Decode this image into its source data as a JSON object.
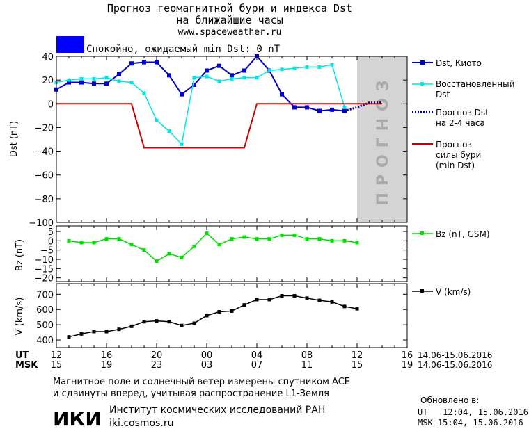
{
  "header": {
    "title_line1": "Прогноз геомагнитной бури и индекса Dst",
    "title_line2": "на ближайшие часы",
    "site": "www.spaceweather.ru",
    "status_color": "#0000ff",
    "status_text": "Спокойно, ожидаемый min Dst: 0 nT"
  },
  "panels": {
    "dst": {
      "ylabel": "Dst (nT)",
      "forecast_watermark": "ПРОГНОЗ"
    },
    "bz": {
      "ylabel": "Bz (nT)"
    },
    "v": {
      "ylabel": "V (km/s)"
    }
  },
  "time_axis": {
    "ut_label": "UT",
    "msk_label": "MSK",
    "ut_ticks": [
      "12",
      "16",
      "20",
      "00",
      "04",
      "08",
      "12",
      "16"
    ],
    "msk_ticks": [
      "15",
      "19",
      "23",
      "03",
      "07",
      "11",
      "15",
      "19"
    ],
    "ut_range": "14.06-15.06.2016",
    "msk_range": "14.06-15.06.2016"
  },
  "legend": {
    "dst_kyoto": "Dst, Киото",
    "dst_restored_1": "Восстановленный",
    "dst_restored_2": "Dst",
    "forecast_1": "Прогноз Dst",
    "forecast_2": "на 2-4 часа",
    "storm_1": "Прогноз",
    "storm_2": "силы бури",
    "storm_3": "(min Dst)",
    "bz": "Bz (nT, GSM)",
    "v": "V (km/s)"
  },
  "footer": {
    "note_line1": "Магнитное поле и солнечный ветер измерены спутником ACE",
    "note_line2": "и сдвинуты вперед, учитывая распространение L1-Земля",
    "institute": "Институт космических исследований РАН",
    "institute_url": "iki.cosmos.ru",
    "logo_text": "ИКИ",
    "updated_label": "Обновлено в:",
    "updated_ut": "UT   12:04, 15.06.2016",
    "updated_msk": "MSK 15:04, 15.06.2016"
  },
  "colors": {
    "dst_kyoto": "#0000cc",
    "dst_restored": "#00e5e5",
    "forecast": "#000099",
    "storm": "#cc0000",
    "bz": "#00dd00",
    "v": "#000000",
    "forecast_band": "#d4d4d4"
  },
  "chart_data": [
    {
      "type": "line",
      "title": "",
      "xlabel": "UT / MSK",
      "ylabel": "Dst (nT)",
      "x_unit": "hours from 12 UT 14.06.2016",
      "xlim": [
        0,
        28
      ],
      "ylim": [
        -100,
        40
      ],
      "yticks": [
        40,
        20,
        0,
        -20,
        -40,
        -60,
        -80,
        -100
      ],
      "forecast_band": [
        24,
        28
      ],
      "series": [
        {
          "name": "Dst, Киото",
          "x": [
            0,
            1,
            2,
            3,
            4,
            5,
            6,
            7,
            8,
            9,
            10,
            11,
            12,
            13,
            14,
            15,
            16,
            17,
            18,
            19,
            20,
            21,
            22,
            23
          ],
          "values": [
            12,
            18,
            18,
            17,
            17,
            25,
            34,
            35,
            35,
            24,
            8,
            16,
            28,
            32,
            24,
            28,
            40,
            28,
            8,
            -3,
            -3,
            -6,
            -5,
            -6
          ]
        },
        {
          "name": "Восстановленный Dst",
          "x": [
            0,
            1,
            2,
            3,
            4,
            5,
            6,
            7,
            8,
            9,
            10,
            11,
            12,
            13,
            14,
            15,
            16,
            17,
            18,
            19,
            20,
            21,
            22,
            23
          ],
          "values": [
            18,
            20,
            21,
            21,
            22,
            19,
            18,
            9,
            -14,
            -23,
            -34,
            22,
            23,
            19,
            21,
            22,
            22,
            28,
            29,
            30,
            31,
            31,
            33,
            -3
          ]
        },
        {
          "name": "Прогноз Dst на 2-4 часа",
          "x": [
            23,
            24,
            25,
            26
          ],
          "values": [
            -6,
            -3,
            1,
            1
          ]
        },
        {
          "name": "Прогноз силы бури (min Dst)",
          "x": [
            0,
            6,
            7,
            15,
            16,
            26
          ],
          "values": [
            0,
            0,
            -37,
            -37,
            0,
            0
          ]
        }
      ]
    },
    {
      "type": "line",
      "ylabel": "Bz (nT)",
      "xlim": [
        0,
        28
      ],
      "ylim": [
        -22,
        8
      ],
      "yticks": [
        5,
        0,
        -5,
        -10,
        -15,
        -20
      ],
      "series": [
        {
          "name": "Bz (nT, GSM)",
          "x": [
            1,
            2,
            3,
            4,
            5,
            6,
            7,
            8,
            9,
            10,
            11,
            12,
            13,
            14,
            15,
            16,
            17,
            18,
            19,
            20,
            21,
            22,
            23,
            24
          ],
          "values": [
            0,
            -1,
            -1,
            1,
            1,
            -2,
            -5,
            -11,
            -7,
            -9,
            -3,
            4,
            -2,
            1,
            2,
            1,
            1,
            3,
            3,
            1,
            1,
            0,
            0,
            -1
          ]
        }
      ]
    },
    {
      "type": "line",
      "ylabel": "V (km/s)",
      "xlim": [
        0,
        28
      ],
      "ylim": [
        350,
        770
      ],
      "yticks": [
        700,
        600,
        500,
        400
      ],
      "series": [
        {
          "name": "V (km/s)",
          "x": [
            1,
            2,
            3,
            4,
            5,
            6,
            7,
            8,
            9,
            10,
            11,
            12,
            13,
            14,
            15,
            16,
            17,
            18,
            19,
            20,
            21,
            22,
            23,
            24
          ],
          "values": [
            420,
            440,
            455,
            455,
            470,
            490,
            520,
            525,
            520,
            495,
            510,
            560,
            585,
            590,
            630,
            665,
            665,
            690,
            690,
            675,
            660,
            650,
            620,
            605
          ]
        }
      ]
    }
  ]
}
